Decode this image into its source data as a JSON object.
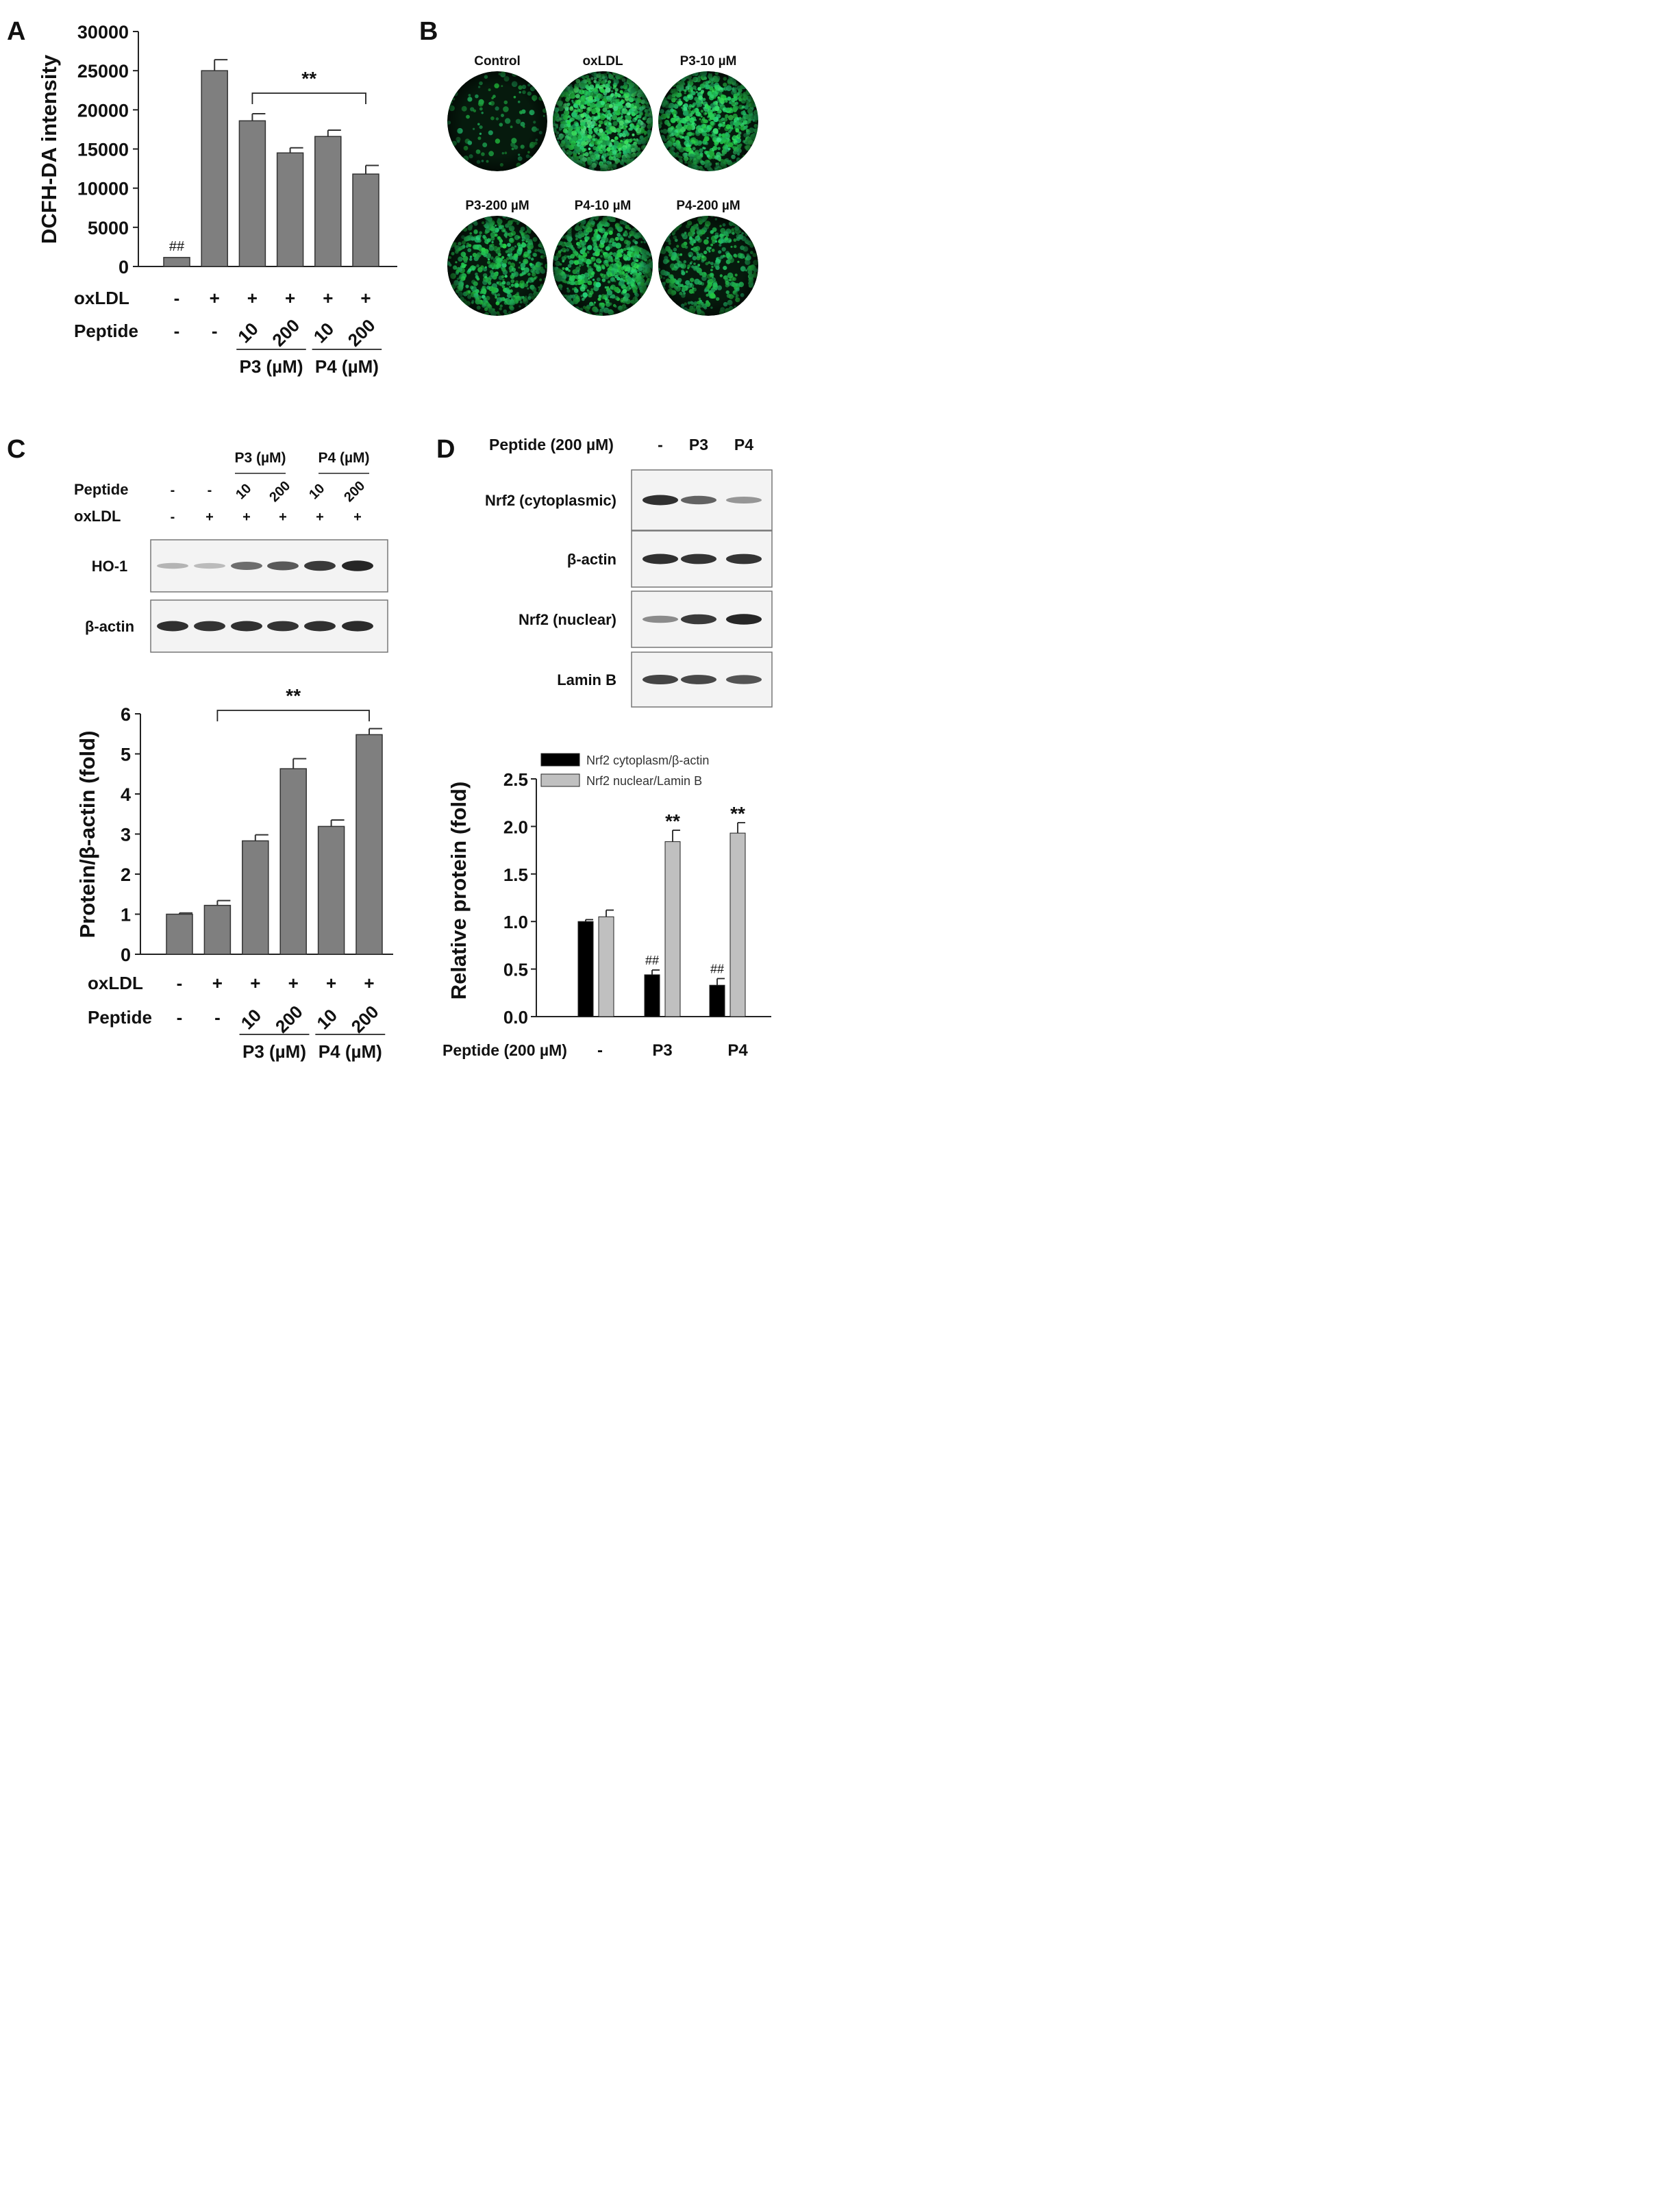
{
  "panels": {
    "A": {
      "letter": "A",
      "chart_data": {
        "type": "bar",
        "ylabel": "DCFH-DA intensity",
        "ylim": [
          0,
          30000
        ],
        "yticks": [
          0,
          5000,
          10000,
          15000,
          20000,
          25000,
          30000
        ],
        "values": [
          1150,
          25000,
          18600,
          14500,
          16600,
          11800
        ],
        "errors": [
          0,
          1400,
          900,
          650,
          800,
          1100
        ],
        "bar_color": "#7f7f7f",
        "bar_annotations": [
          {
            "bar": 0,
            "text": "##"
          }
        ],
        "significance": {
          "from": 2,
          "to": 5,
          "text": "**"
        },
        "treatment_rows": [
          {
            "label": "oxLDL",
            "values": [
              "-",
              "+",
              "+",
              "+",
              "+",
              "+"
            ]
          },
          {
            "label": "Peptide",
            "values": [
              "-",
              "-",
              "10",
              "200",
              "10",
              "200"
            ]
          }
        ],
        "groups": [
          {
            "label": "P3 (µM)",
            "bars": [
              2,
              3
            ]
          },
          {
            "label": "P4 (µM)",
            "bars": [
              4,
              5
            ]
          }
        ]
      }
    },
    "B": {
      "letter": "B",
      "images": [
        {
          "label": "Control",
          "intensity": 0.08
        },
        {
          "label": "oxLDL",
          "intensity": 1.0
        },
        {
          "label": "P3-10 µM",
          "intensity": 0.82
        },
        {
          "label": "P3-200 µM",
          "intensity": 0.55
        },
        {
          "label": "P4-10 µM",
          "intensity": 0.7
        },
        {
          "label": "P4-200 µM",
          "intensity": 0.42
        }
      ],
      "fluorescence_color": "#1fc24a"
    },
    "C": {
      "letter": "C",
      "blot": {
        "group_labels": [
          "P3 (µM)",
          "P4 (µM)"
        ],
        "header_rows": [
          {
            "label": "Peptide",
            "values": [
              "-",
              "-",
              "10",
              "200",
              "10",
              "200"
            ]
          },
          {
            "label": "oxLDL",
            "values": [
              "-",
              "+",
              "+",
              "+",
              "+",
              "+"
            ]
          }
        ],
        "bands": [
          {
            "label": "HO-1",
            "intensities": [
              0.25,
              0.22,
              0.6,
              0.7,
              0.85,
              0.95
            ]
          },
          {
            "label": "β-actin",
            "intensities": [
              0.9,
              0.88,
              0.9,
              0.88,
              0.9,
              0.92
            ]
          }
        ]
      },
      "chart_data": {
        "type": "bar",
        "ylabel": "Protein/β-actin (fold)",
        "ylim": [
          0,
          6
        ],
        "yticks": [
          0,
          1,
          2,
          3,
          4,
          5,
          6
        ],
        "values": [
          1.0,
          1.22,
          2.83,
          4.63,
          3.19,
          5.48
        ],
        "errors": [
          0.03,
          0.12,
          0.15,
          0.25,
          0.16,
          0.15
        ],
        "bar_color": "#7f7f7f",
        "significance": {
          "from": 1,
          "to": 5,
          "text": "**"
        },
        "treatment_rows": [
          {
            "label": "oxLDL",
            "values": [
              "-",
              "+",
              "+",
              "+",
              "+",
              "+"
            ]
          },
          {
            "label": "Peptide",
            "values": [
              "-",
              "-",
              "10",
              "200",
              "10",
              "200"
            ]
          }
        ],
        "groups": [
          {
            "label": "P3 (µM)",
            "bars": [
              2,
              3
            ]
          },
          {
            "label": "P4 (µM)",
            "bars": [
              4,
              5
            ]
          }
        ]
      }
    },
    "D": {
      "letter": "D",
      "blot": {
        "header": {
          "label": "Peptide (200 µM)",
          "values": [
            "-",
            "P3",
            "P4"
          ]
        },
        "bands": [
          {
            "label": "Nrf2 (cytoplasmic)",
            "intensities": [
              0.9,
              0.65,
              0.4
            ]
          },
          {
            "label": "β-actin",
            "intensities": [
              0.9,
              0.88,
              0.88
            ]
          },
          {
            "label": "Nrf2 (nuclear)",
            "intensities": [
              0.45,
              0.85,
              0.95
            ]
          },
          {
            "label": "Lamin B",
            "intensities": [
              0.8,
              0.78,
              0.72
            ]
          }
        ]
      },
      "chart_data": {
        "type": "bar",
        "ylabel": "Relative protein (fold)",
        "xlabel": "Peptide (200 µM)",
        "categories": [
          "-",
          "P3",
          "P4"
        ],
        "ylim": [
          0,
          2.5
        ],
        "yticks": [
          "0.0",
          "0.5",
          "1.0",
          "1.5",
          "2.0",
          "2.5"
        ],
        "series": [
          {
            "name": "Nrf2 cytoplasm/β-actin",
            "color": "#000000",
            "values": [
              1.0,
              0.44,
              0.33
            ],
            "errors": [
              0.02,
              0.05,
              0.07
            ],
            "annotations": [
              "",
              "##",
              "##"
            ]
          },
          {
            "name": "Nrf2 nuclear/Lamin B",
            "color": "#c0c0c0",
            "values": [
              1.05,
              1.84,
              1.93
            ],
            "errors": [
              0.07,
              0.12,
              0.11
            ],
            "annotations": [
              "",
              "**",
              "**"
            ]
          }
        ],
        "legend": "top"
      }
    }
  }
}
